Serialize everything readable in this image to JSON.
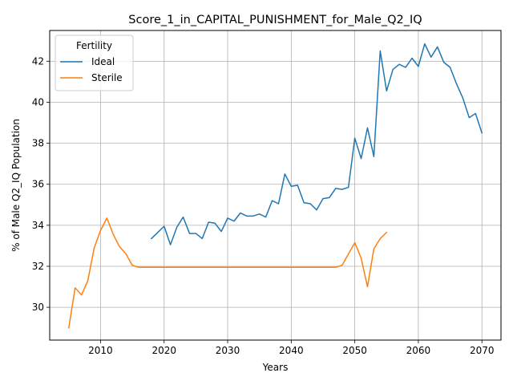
{
  "chart_data": {
    "type": "line",
    "title": "Score_1_in_CAPITAL_PUNISHMENT_for_Male_Q2_IQ",
    "xlabel": "Years",
    "ylabel": "% of Male Q2_IQ Population",
    "xlim": [
      2002,
      2073
    ],
    "ylim": [
      28.4,
      43.5
    ],
    "xticks": [
      2010,
      2020,
      2030,
      2040,
      2050,
      2060,
      2070
    ],
    "yticks": [
      30,
      32,
      34,
      36,
      38,
      40,
      42
    ],
    "grid": true,
    "legend": {
      "title": "Fertility",
      "placement": "top-left"
    },
    "series": [
      {
        "name": "Ideal",
        "color": "#1f77b4",
        "x": [
          2018,
          2019,
          2020,
          2021,
          2022,
          2023,
          2024,
          2025,
          2026,
          2027,
          2028,
          2029,
          2030,
          2031,
          2032,
          2033,
          2034,
          2035,
          2036,
          2037,
          2038,
          2039,
          2040,
          2041,
          2042,
          2043,
          2044,
          2045,
          2046,
          2047,
          2048,
          2049,
          2050,
          2051,
          2052,
          2053,
          2054,
          2055,
          2056,
          2057,
          2058,
          2059,
          2060,
          2061,
          2062,
          2063,
          2064,
          2065,
          2066,
          2067,
          2068,
          2069,
          2070
        ],
        "values": [
          33.35,
          33.65,
          33.95,
          33.05,
          33.9,
          34.4,
          33.6,
          33.6,
          33.35,
          34.15,
          34.1,
          33.7,
          34.35,
          34.2,
          34.6,
          34.45,
          34.45,
          34.55,
          34.4,
          35.2,
          35.05,
          36.5,
          35.9,
          35.95,
          35.1,
          35.05,
          34.75,
          35.3,
          35.35,
          35.8,
          35.75,
          35.85,
          38.25,
          37.25,
          38.75,
          37.35,
          42.5,
          40.55,
          41.6,
          41.85,
          41.7,
          42.15,
          41.75,
          42.85,
          42.2,
          42.7,
          41.95,
          41.7,
          40.9,
          40.2,
          39.25,
          39.45,
          38.5
        ]
      },
      {
        "name": "Sterile",
        "color": "#ff7f0e",
        "x": [
          2005,
          2006,
          2007,
          2008,
          2009,
          2010,
          2011,
          2012,
          2013,
          2014,
          2015,
          2016,
          2017,
          2018,
          2019,
          2020,
          2021,
          2022,
          2023,
          2024,
          2025,
          2026,
          2027,
          2028,
          2029,
          2030,
          2031,
          2032,
          2033,
          2034,
          2035,
          2036,
          2037,
          2038,
          2039,
          2040,
          2041,
          2042,
          2043,
          2044,
          2045,
          2046,
          2047,
          2048,
          2049,
          2050,
          2051,
          2052,
          2053,
          2054,
          2055
        ],
        "values": [
          29.0,
          30.95,
          30.6,
          31.3,
          32.9,
          33.75,
          34.35,
          33.55,
          32.95,
          32.6,
          32.05,
          31.95,
          31.95,
          31.95,
          31.95,
          31.95,
          31.95,
          31.95,
          31.95,
          31.95,
          31.95,
          31.95,
          31.95,
          31.95,
          31.95,
          31.95,
          31.95,
          31.95,
          31.95,
          31.95,
          31.95,
          31.95,
          31.95,
          31.95,
          31.95,
          31.95,
          31.95,
          31.95,
          31.95,
          31.95,
          31.95,
          31.95,
          31.95,
          32.05,
          32.6,
          33.15,
          32.4,
          31.0,
          32.85,
          33.35,
          33.65
        ]
      }
    ]
  }
}
